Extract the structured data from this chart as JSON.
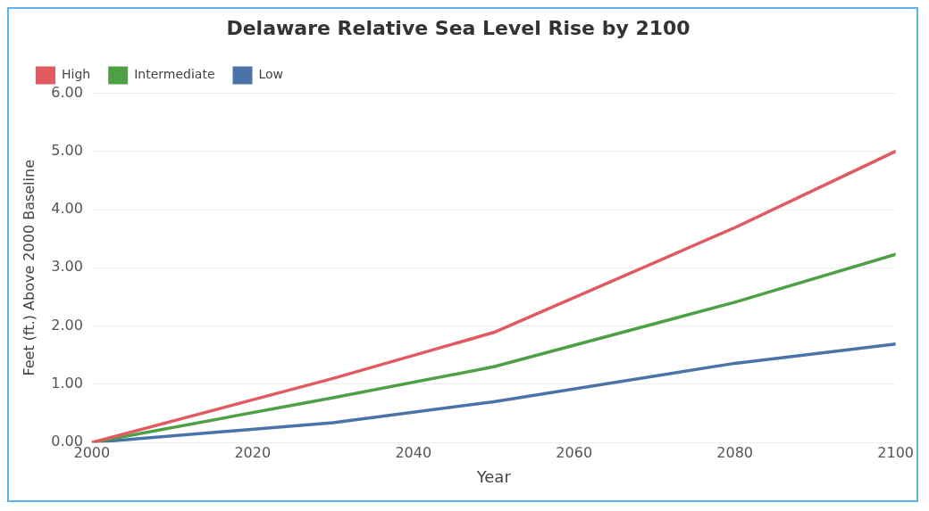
{
  "chart_data": {
    "type": "line",
    "title": "Delaware Relative Sea Level Rise by 2100",
    "xlabel": "Year",
    "ylabel": "Feet (ft.) Above 2000 Baseline",
    "x": [
      2000,
      2030,
      2050,
      2080,
      2100
    ],
    "series": [
      {
        "name": "High",
        "color": "#e05a5f",
        "values": [
          0,
          1.1,
          1.89,
          3.69,
          5.0
        ]
      },
      {
        "name": "Intermediate",
        "color": "#4e9f45",
        "values": [
          0,
          0.77,
          1.3,
          2.41,
          3.23
        ]
      },
      {
        "name": "Low",
        "color": "#4a73a8",
        "values": [
          0,
          0.34,
          0.7,
          1.36,
          1.69
        ]
      }
    ],
    "xlim": [
      2000,
      2100
    ],
    "xticks": [
      2000,
      2020,
      2040,
      2060,
      2080,
      2100
    ],
    "ylim": [
      0,
      6
    ],
    "yticks": [
      {
        "value": 0,
        "label": "0.00"
      },
      {
        "value": 1,
        "label": "1.00"
      },
      {
        "value": 2,
        "label": "2.00"
      },
      {
        "value": 3,
        "label": "3.00"
      },
      {
        "value": 4,
        "label": "4.00"
      },
      {
        "value": 5,
        "label": "5.00"
      },
      {
        "value": 6,
        "label": "6.00"
      }
    ],
    "grid": "y",
    "legend": "top left",
    "marker": "none",
    "line_style": "solid"
  }
}
